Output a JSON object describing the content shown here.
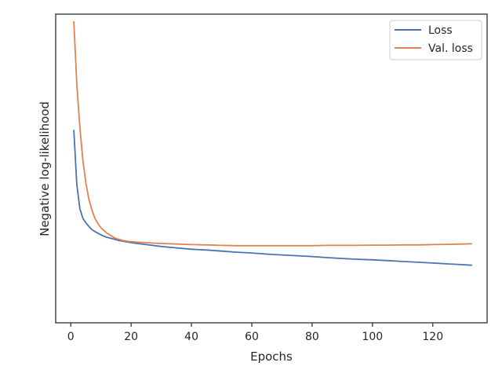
{
  "chart_data": {
    "type": "line",
    "title": "",
    "xlabel": "Epochs",
    "ylabel": "Negative log-likelihood",
    "xlim": [
      -5,
      138
    ],
    "ylim": [
      0.0,
      1.0
    ],
    "xticks": [
      0,
      20,
      40,
      60,
      80,
      100,
      120
    ],
    "grid": false,
    "legend_position": "top-right",
    "y_tick_labels_shown": false,
    "series": [
      {
        "name": "Loss",
        "color": "#4c72b0",
        "x": [
          1,
          2,
          3,
          4,
          5,
          6,
          7,
          8,
          9,
          10,
          11,
          12,
          13,
          14,
          15,
          16,
          17,
          18,
          19,
          20,
          22,
          25,
          30,
          35,
          40,
          45,
          50,
          55,
          60,
          65,
          70,
          75,
          80,
          85,
          90,
          95,
          100,
          105,
          110,
          115,
          120,
          125,
          130,
          133
        ],
        "y": [
          0.6,
          0.4,
          0.31,
          0.275,
          0.258,
          0.245,
          0.233,
          0.226,
          0.22,
          0.214,
          0.209,
          0.205,
          0.202,
          0.199,
          0.196,
          0.193,
          0.191,
          0.189,
          0.187,
          0.185,
          0.182,
          0.178,
          0.171,
          0.166,
          0.161,
          0.158,
          0.154,
          0.15,
          0.147,
          0.143,
          0.14,
          0.137,
          0.134,
          0.13,
          0.127,
          0.124,
          0.122,
          0.119,
          0.116,
          0.113,
          0.11,
          0.107,
          0.104,
          0.102
        ]
      },
      {
        "name": "Val. loss",
        "color": "#dd8452",
        "x": [
          1,
          2,
          3,
          4,
          5,
          6,
          7,
          8,
          9,
          10,
          11,
          12,
          13,
          14,
          15,
          16,
          17,
          18,
          19,
          20,
          22,
          25,
          30,
          35,
          40,
          45,
          50,
          55,
          60,
          65,
          70,
          75,
          80,
          85,
          90,
          95,
          100,
          105,
          110,
          115,
          120,
          125,
          130,
          133
        ],
        "y": [
          1.0,
          0.77,
          0.61,
          0.49,
          0.405,
          0.345,
          0.305,
          0.275,
          0.255,
          0.24,
          0.23,
          0.22,
          0.213,
          0.206,
          0.2,
          0.197,
          0.194,
          0.192,
          0.19,
          0.189,
          0.187,
          0.185,
          0.182,
          0.18,
          0.178,
          0.177,
          0.175,
          0.174,
          0.174,
          0.174,
          0.174,
          0.174,
          0.174,
          0.175,
          0.175,
          0.175,
          0.176,
          0.176,
          0.177,
          0.177,
          0.178,
          0.179,
          0.18,
          0.181
        ]
      }
    ]
  }
}
